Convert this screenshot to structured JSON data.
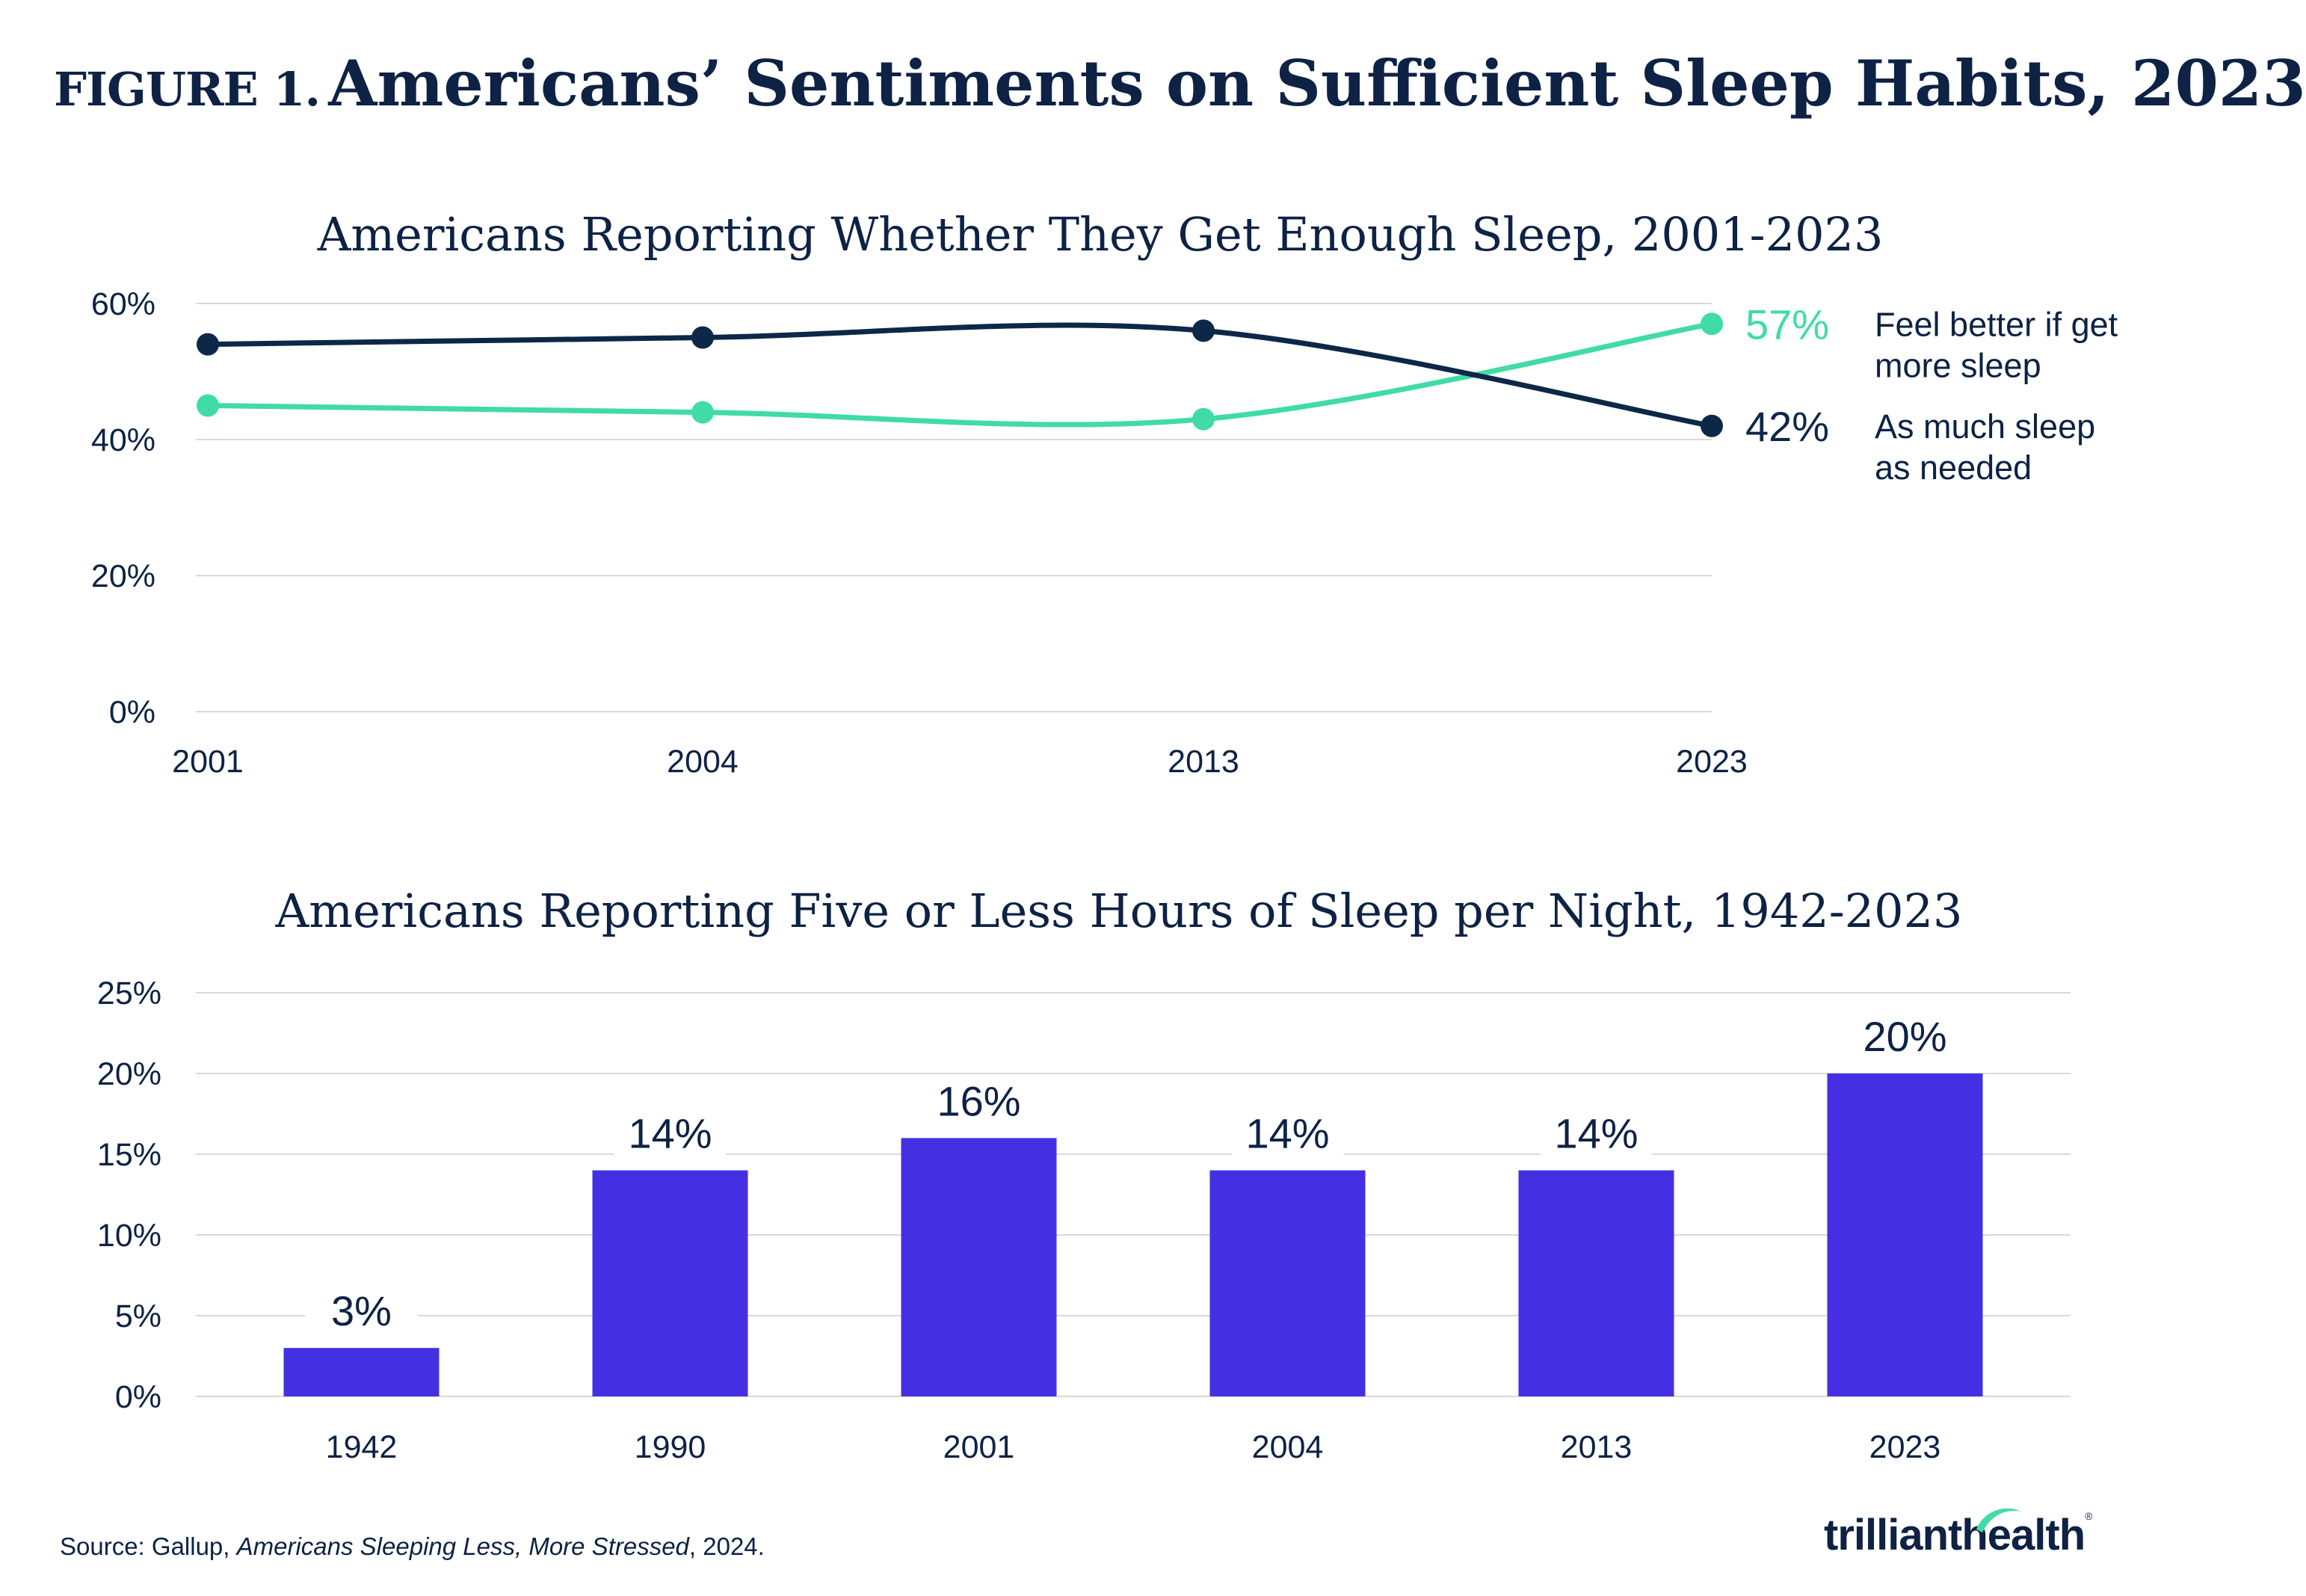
{
  "figure": {
    "label": "FIGURE 1.",
    "title": "Americans’ Sentiments on Sufficient Sleep Habits, 2023"
  },
  "colors": {
    "navy": "#0d2748",
    "teal": "#40dba6",
    "purple": "#4430e2",
    "text": "#0d2244",
    "grid": "#d9d9d9"
  },
  "chart_data": [
    {
      "type": "line",
      "title": "Americans Reporting Whether They Get Enough Sleep, 2001-2023",
      "x": [
        "2001",
        "2004",
        "2013",
        "2023"
      ],
      "ylim": [
        0,
        60
      ],
      "yticks": [
        "0%",
        "20%",
        "40%",
        "60%"
      ],
      "grid": true,
      "series": [
        {
          "name": "Feel better if get more sleep",
          "legend_lines": [
            "Feel better if get",
            "more sleep"
          ],
          "values": [
            45,
            44,
            43,
            57
          ],
          "end_label": "57%",
          "color": "#40dba6"
        },
        {
          "name": "As much sleep as needed",
          "legend_lines": [
            "As much sleep",
            "as needed"
          ],
          "values": [
            54,
            55,
            56,
            42
          ],
          "end_label": "42%",
          "color": "#0d2748"
        }
      ]
    },
    {
      "type": "bar",
      "title": "Americans Reporting Five or Less Hours of Sleep per Night, 1942-2023",
      "categories": [
        "1942",
        "1990",
        "2001",
        "2004",
        "2013",
        "2023"
      ],
      "values": [
        3,
        14,
        16,
        14,
        14,
        20
      ],
      "data_labels": [
        "3%",
        "14%",
        "16%",
        "14%",
        "14%",
        "20%"
      ],
      "ylim": [
        0,
        25
      ],
      "yticks": [
        "0%",
        "5%",
        "10%",
        "15%",
        "20%",
        "25%"
      ],
      "grid": true,
      "color": "#4430e2"
    }
  ],
  "source": {
    "prefix": "Source: Gallup, ",
    "publication": "Americans Sleeping Less, More Stressed",
    "suffix": ", 2024."
  },
  "logo": {
    "text_left": "trilliant",
    "text_right": "health",
    "registered": "®"
  }
}
